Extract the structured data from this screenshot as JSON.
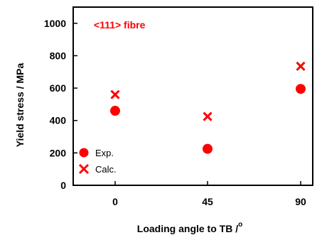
{
  "chart_data": {
    "type": "scatter",
    "title": "",
    "xlabel": "Loading angle to TB /",
    "xlabel_degree": "o",
    "ylabel": "Yield stress / MPa",
    "categories": [
      "0",
      "45",
      "90"
    ],
    "ylim": [
      0,
      1100
    ],
    "yticks": [
      "0",
      "200",
      "400",
      "600",
      "800",
      "1000"
    ],
    "ytick_values": [
      0,
      200,
      400,
      600,
      800,
      1000
    ],
    "annotation": "<111> fibre",
    "grid": false,
    "legend_position": "bottom-left",
    "series": [
      {
        "name": "Exp.",
        "marker": "circle",
        "color": "#ff0000",
        "values": [
          460,
          225,
          595
        ]
      },
      {
        "name": "Calc.",
        "marker": "x",
        "color": "#ff0000",
        "values": [
          560,
          425,
          735
        ]
      }
    ]
  }
}
